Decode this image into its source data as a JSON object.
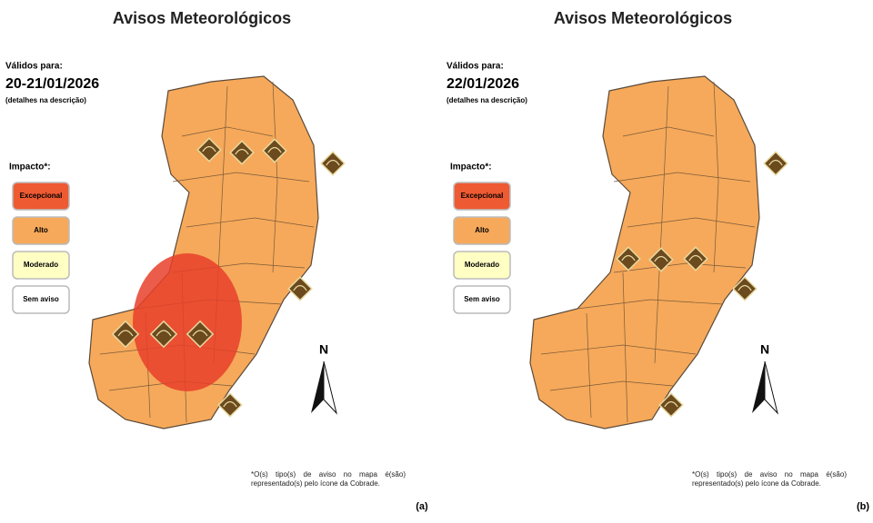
{
  "panels": [
    {
      "title": "Avisos Meteorológicos",
      "valid_label": "Válidos para:",
      "date": "20-21/01/2026",
      "details": "(detalhes na descrição)",
      "impact_label": "Impacto*:",
      "legend": [
        "Excepcional",
        "Alto",
        "Moderado",
        "Sem aviso"
      ],
      "north": "N",
      "footnote": "*O(s) tipo(s) de aviso no mapa é(são) representado(s) pelo ícone da Cobrade.",
      "caption": "(a)"
    },
    {
      "title": "Avisos Meteorológicos",
      "valid_label": "Válidos para:",
      "date": "22/01/2026",
      "details": "(detalhes na descrição)",
      "impact_label": "Impacto*:",
      "legend": [
        "Excepcional",
        "Alto",
        "Moderado",
        "Sem aviso"
      ],
      "north": "N",
      "footnote": "*O(s) tipo(s) de aviso no mapa é(são) representado(s) pelo ícone da Cobrade.",
      "caption": "(b)"
    }
  ]
}
